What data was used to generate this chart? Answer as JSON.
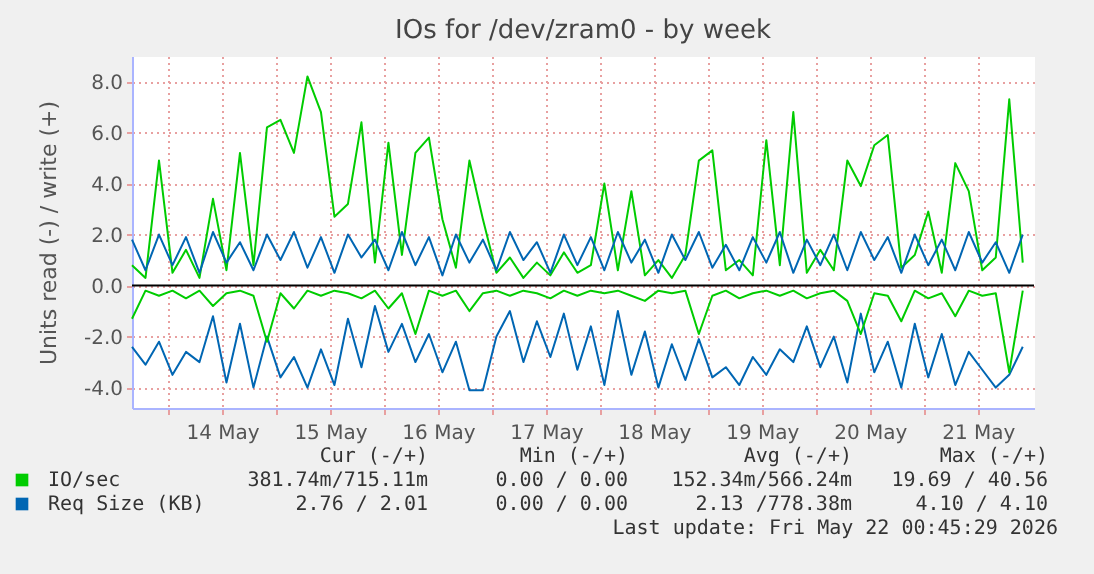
{
  "chart_data": {
    "type": "line",
    "title": "IOs for /dev/zram0 - by week",
    "ylabel": "Units read (-) / write (+)",
    "x": [
      "2026-05-13T16:00",
      "2026-05-13T19:00",
      "2026-05-13T22:00",
      "2026-05-14T01:00",
      "2026-05-14T04:00",
      "2026-05-14T07:00",
      "2026-05-14T10:00",
      "2026-05-14T13:00",
      "2026-05-14T16:00",
      "2026-05-14T19:00",
      "2026-05-14T22:00",
      "2026-05-15T01:00",
      "2026-05-15T04:00",
      "2026-05-15T07:00",
      "2026-05-15T10:00",
      "2026-05-15T13:00",
      "2026-05-15T16:00",
      "2026-05-15T19:00",
      "2026-05-15T22:00",
      "2026-05-16T01:00",
      "2026-05-16T04:00",
      "2026-05-16T07:00",
      "2026-05-16T10:00",
      "2026-05-16T13:00",
      "2026-05-16T16:00",
      "2026-05-16T19:00",
      "2026-05-16T22:00",
      "2026-05-17T01:00",
      "2026-05-17T04:00",
      "2026-05-17T07:00",
      "2026-05-17T10:00",
      "2026-05-17T13:00",
      "2026-05-17T16:00",
      "2026-05-17T19:00",
      "2026-05-17T22:00",
      "2026-05-18T01:00",
      "2026-05-18T04:00",
      "2026-05-18T07:00",
      "2026-05-18T10:00",
      "2026-05-18T13:00",
      "2026-05-18T16:00",
      "2026-05-18T19:00",
      "2026-05-18T22:00",
      "2026-05-19T01:00",
      "2026-05-19T04:00",
      "2026-05-19T07:00",
      "2026-05-19T10:00",
      "2026-05-19T13:00",
      "2026-05-19T16:00",
      "2026-05-19T19:00",
      "2026-05-19T22:00",
      "2026-05-20T01:00",
      "2026-05-20T04:00",
      "2026-05-20T07:00",
      "2026-05-20T10:00",
      "2026-05-20T13:00",
      "2026-05-20T16:00",
      "2026-05-20T19:00",
      "2026-05-20T22:00",
      "2026-05-21T01:00",
      "2026-05-21T04:00",
      "2026-05-21T07:00",
      "2026-05-21T10:00",
      "2026-05-21T13:00",
      "2026-05-21T16:00",
      "2026-05-21T19:00",
      "2026-05-21T22:00"
    ],
    "series": [
      {
        "color": "#0066b3",
        "values": [
          -2.4,
          -3.1,
          -2.2,
          -3.5,
          -2.6,
          -3.0,
          -1.2,
          -3.8,
          -1.5,
          -4.0,
          -2.0,
          -3.6,
          -2.8,
          -4.0,
          -2.5,
          -3.9,
          -1.3,
          -3.2,
          -0.8,
          -2.6,
          -1.5,
          -3.0,
          -1.9,
          -3.4,
          -2.2,
          -4.1,
          -4.1,
          -2.0,
          -1.0,
          -3.0,
          -1.4,
          -2.8,
          -1.1,
          -3.3,
          -1.6,
          -3.9,
          -1.0,
          -3.5,
          -1.8,
          -4.0,
          -2.3,
          -3.7,
          -2.1,
          -3.6,
          -3.2,
          -3.9,
          -2.8,
          -3.5,
          -2.5,
          -3.0,
          -1.6,
          -3.2,
          -2.0,
          -3.8,
          -1.1,
          -3.4,
          -2.2,
          -4.0,
          -1.5,
          -3.6,
          -1.9,
          -3.9,
          -2.6,
          -3.3,
          -4.0,
          -3.5,
          -2.4
        ]
      },
      {
        "color": "#00cc00",
        "values": [
          -1.3,
          -0.2,
          -0.4,
          -0.2,
          -0.5,
          -0.2,
          -0.8,
          -0.3,
          -0.2,
          -0.4,
          -2.2,
          -0.3,
          -0.9,
          -0.2,
          -0.4,
          -0.2,
          -0.3,
          -0.5,
          -0.2,
          -0.9,
          -0.3,
          -1.9,
          -0.2,
          -0.4,
          -0.2,
          -1.0,
          -0.3,
          -0.2,
          -0.4,
          -0.2,
          -0.3,
          -0.5,
          -0.2,
          -0.4,
          -0.2,
          -0.3,
          -0.2,
          -0.4,
          -0.6,
          -0.2,
          -0.3,
          -0.2,
          -1.9,
          -0.4,
          -0.2,
          -0.5,
          -0.3,
          -0.2,
          -0.4,
          -0.2,
          -0.5,
          -0.3,
          -0.2,
          -0.6,
          -1.9,
          -0.3,
          -0.4,
          -1.4,
          -0.2,
          -0.5,
          -0.3,
          -1.2,
          -0.2,
          -0.4,
          -0.3,
          -3.4,
          -0.2
        ]
      },
      {
        "name": "IO/sec",
        "color": "#00cc00",
        "values": [
          0.8,
          0.3,
          4.9,
          0.5,
          1.4,
          0.3,
          3.4,
          0.6,
          5.2,
          0.8,
          6.2,
          6.5,
          5.2,
          8.2,
          6.8,
          2.7,
          3.2,
          6.4,
          0.9,
          5.6,
          1.2,
          5.2,
          5.8,
          2.6,
          0.7,
          4.9,
          2.6,
          0.5,
          1.1,
          0.3,
          0.9,
          0.4,
          1.3,
          0.5,
          0.8,
          4.0,
          0.6,
          3.7,
          0.4,
          1.0,
          0.3,
          1.2,
          4.9,
          5.3,
          0.6,
          1.0,
          0.4,
          5.7,
          0.8,
          6.8,
          0.5,
          1.4,
          0.6,
          4.9,
          3.9,
          5.5,
          5.9,
          0.7,
          1.2,
          2.9,
          0.5,
          4.8,
          3.7,
          0.6,
          1.1,
          7.3,
          0.9
        ]
      },
      {
        "name": "Req Size (KB)",
        "color": "#0066b3",
        "values": [
          1.8,
          0.6,
          2.0,
          0.8,
          1.9,
          0.5,
          2.1,
          0.9,
          1.7,
          0.6,
          2.0,
          1.0,
          2.1,
          0.7,
          1.9,
          0.5,
          2.0,
          1.1,
          1.8,
          0.6,
          2.1,
          0.8,
          1.9,
          0.4,
          2.0,
          0.9,
          1.8,
          0.6,
          2.1,
          1.0,
          1.7,
          0.5,
          2.0,
          0.8,
          1.9,
          0.6,
          2.1,
          0.9,
          1.8,
          0.5,
          2.0,
          1.0,
          2.1,
          0.7,
          1.6,
          0.6,
          1.9,
          0.9,
          2.1,
          0.5,
          1.8,
          0.8,
          2.0,
          0.6,
          2.1,
          1.0,
          1.9,
          0.5,
          2.0,
          0.8,
          1.8,
          0.6,
          2.1,
          0.9,
          1.7,
          0.5,
          2.0
        ]
      }
    ],
    "xlim": [
      "2026-05-13T16:00",
      "2026-05-22T00:30"
    ],
    "xticks": [
      {
        "value": "2026-05-14T00:00",
        "label": null
      },
      {
        "value": "2026-05-14T12:00",
        "label": "14 May"
      },
      {
        "value": "2026-05-15T00:00",
        "label": null
      },
      {
        "value": "2026-05-15T12:00",
        "label": "15 May"
      },
      {
        "value": "2026-05-16T00:00",
        "label": null
      },
      {
        "value": "2026-05-16T12:00",
        "label": "16 May"
      },
      {
        "value": "2026-05-17T00:00",
        "label": null
      },
      {
        "value": "2026-05-17T12:00",
        "label": "17 May"
      },
      {
        "value": "2026-05-18T00:00",
        "label": null
      },
      {
        "value": "2026-05-18T12:00",
        "label": "18 May"
      },
      {
        "value": "2026-05-19T00:00",
        "label": null
      },
      {
        "value": "2026-05-19T12:00",
        "label": "19 May"
      },
      {
        "value": "2026-05-20T00:00",
        "label": null
      },
      {
        "value": "2026-05-20T12:00",
        "label": "20 May"
      },
      {
        "value": "2026-05-21T00:00",
        "label": null
      },
      {
        "value": "2026-05-21T12:00",
        "label": "21 May"
      }
    ],
    "ylim": [
      -4.8,
      9
    ],
    "yticks": [
      {
        "value": -4,
        "label": "-4.0"
      },
      {
        "value": -2,
        "label": "-2.0"
      },
      {
        "value": 0,
        "label": "0.0"
      },
      {
        "value": 2,
        "label": "2.0"
      },
      {
        "value": 4,
        "label": "4.0"
      },
      {
        "value": 6,
        "label": "6.0"
      },
      {
        "value": 8,
        "label": "8.0"
      }
    ],
    "ref_lines": [
      {
        "axis": "y",
        "value": 0,
        "color": "#000000"
      }
    ],
    "grid": true,
    "legend": "bottom",
    "marker": "none",
    "line_style": "solid",
    "annotations": [
      "Cur (-/+)",
      "Min (-/+)",
      "Avg (-/+)",
      "Max (-/+)",
      "381.74m/715.11m",
      "0.00 /  0.00",
      "152.34m/566.24m",
      "19.69 / 40.56",
      "2.76 /  2.01",
      "0.00 /  0.00",
      "2.13 /778.38m",
      "4.10 /  4.10",
      "Last update: Fri May 22 00:45:29 2026"
    ]
  }
}
